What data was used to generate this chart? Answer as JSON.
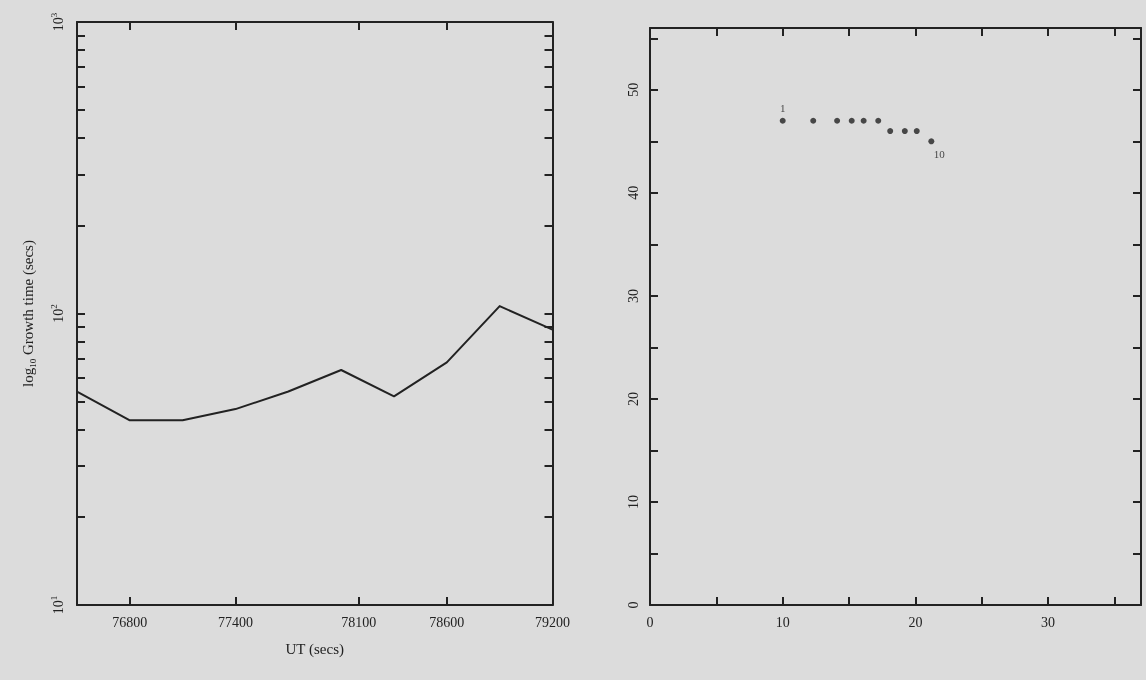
{
  "chart_data": [
    {
      "type": "line",
      "xlabel": "UT (secs)",
      "ylabel": "log$_{10}$ Growth time (secs)",
      "log": "y",
      "xlim": [
        76500,
        79200
      ],
      "xticks": [
        76800,
        77400,
        78100,
        78600,
        79200
      ],
      "ylim": [
        10,
        1000
      ],
      "yticks": [
        {
          "value": 10,
          "label": "10$^{1}$"
        },
        {
          "value": 20,
          "label": null
        },
        {
          "value": 30,
          "label": null
        },
        {
          "value": 40,
          "label": null
        },
        {
          "value": 50,
          "label": null
        },
        {
          "value": 60,
          "label": null
        },
        {
          "value": 70,
          "label": null
        },
        {
          "value": 80,
          "label": null
        },
        {
          "value": 90,
          "label": null
        },
        {
          "value": 100,
          "label": "10$^{2}$"
        },
        {
          "value": 200,
          "label": null
        },
        {
          "value": 300,
          "label": null
        },
        {
          "value": 400,
          "label": null
        },
        {
          "value": 500,
          "label": null
        },
        {
          "value": 600,
          "label": null
        },
        {
          "value": 700,
          "label": null
        },
        {
          "value": 800,
          "label": null
        },
        {
          "value": 900,
          "label": null
        },
        {
          "value": 1000,
          "label": "10$^{3}$"
        }
      ],
      "x": [
        76500,
        76800,
        77100,
        77400,
        77700,
        78000,
        78300,
        78600,
        78900,
        79200
      ],
      "series": [
        {
          "color": "#222222",
          "values": [
            54,
            43,
            43,
            47,
            54,
            64,
            52,
            68,
            106,
            88
          ]
        }
      ],
      "marker": "none",
      "line_style": "solid"
    },
    {
      "type": "scatter",
      "xlim": [
        0,
        37
      ],
      "xticks": [
        0,
        {
          "value": 5,
          "label": null
        },
        10,
        {
          "value": 15,
          "label": null
        },
        20,
        {
          "value": 25,
          "label": null
        },
        30,
        {
          "value": 35,
          "label": null
        }
      ],
      "ylim": [
        0,
        56
      ],
      "yticks": [
        0,
        {
          "value": 5,
          "label": null
        },
        10,
        {
          "value": 15,
          "label": null
        },
        20,
        {
          "value": 25,
          "label": null
        },
        30,
        {
          "value": 35,
          "label": null
        },
        40,
        {
          "value": 45,
          "label": null
        },
        50,
        {
          "value": 55,
          "label": null
        }
      ],
      "x": [
        10,
        12.3,
        14.1,
        15.2,
        16.1,
        17.2,
        18.1,
        19.2,
        20.1,
        21.2
      ],
      "series": [
        {
          "color": "#222222",
          "values": [
            47,
            47,
            47,
            47,
            47,
            47,
            46,
            46,
            46,
            45
          ]
        }
      ],
      "annotations": [
        {
          "text": "1",
          "x": 10,
          "y": 47
        },
        {
          "text": "10",
          "x": 21.2,
          "y": 45
        }
      ],
      "marker": "circle"
    }
  ]
}
